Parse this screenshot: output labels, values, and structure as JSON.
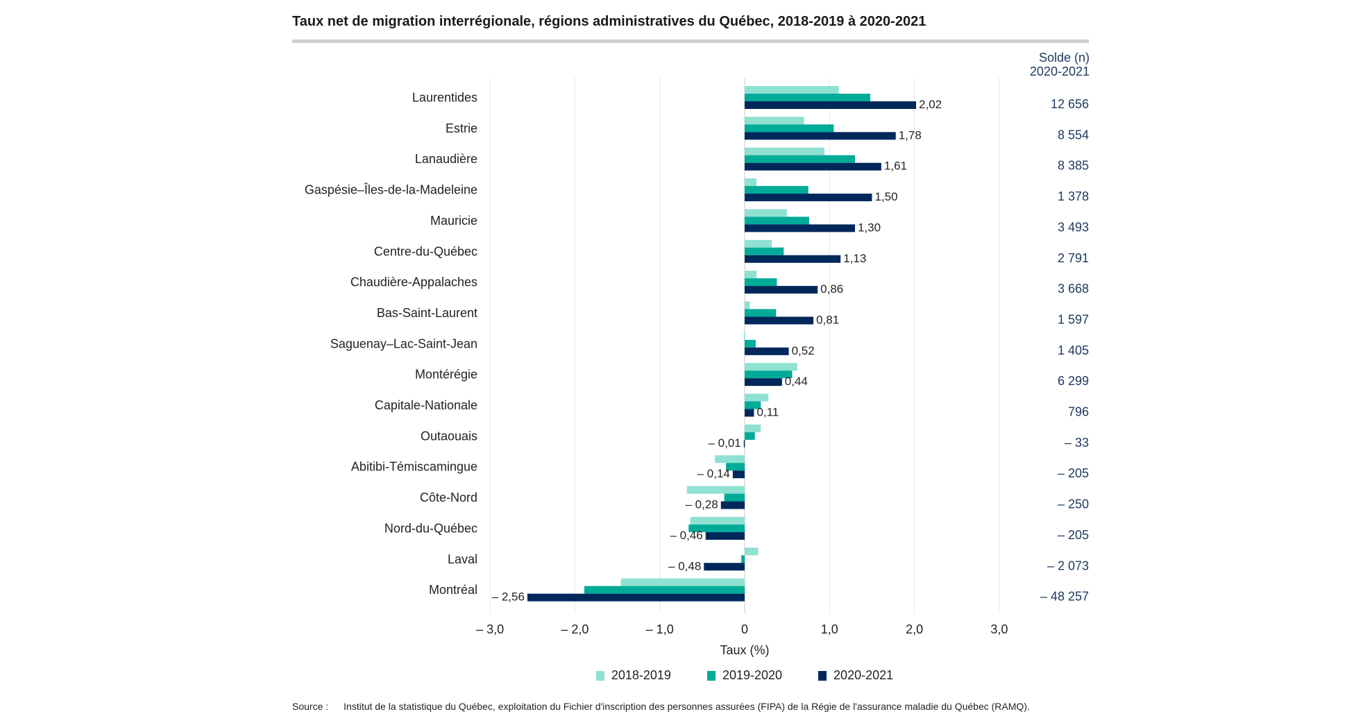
{
  "chart_data": {
    "type": "bar",
    "orientation": "horizontal",
    "title": "Taux net de migration interrégionale, régions administratives du Québec, 2018-2019 à 2020-2021",
    "xlabel": "Taux (%)",
    "xlim": [
      -3.0,
      3.0
    ],
    "xticks": [
      -3.0,
      -2.0,
      -1.0,
      0,
      1.0,
      2.0,
      3.0
    ],
    "xtick_labels": [
      "– 3,0",
      "– 2,0",
      "– 1,0",
      "0",
      "1,0",
      "2,0",
      "3,0"
    ],
    "grid": "vertical",
    "legend_position": "bottom",
    "categories": [
      "Laurentides",
      "Estrie",
      "Lanaudière",
      "Gaspésie–Îles-de-la-Madeleine",
      "Mauricie",
      "Centre-du-Québec",
      "Chaudière-Appalaches",
      "Bas-Saint-Laurent",
      "Saguenay–Lac-Saint-Jean",
      "Montérégie",
      "Capitale-Nationale",
      "Outaouais",
      "Abitibi-Témiscamingue",
      "Côte-Nord",
      "Nord-du-Québec",
      "Laval",
      "Montréal"
    ],
    "series": [
      {
        "name": "2018-2019",
        "color": "#8fe1d2",
        "values": [
          1.11,
          0.7,
          0.94,
          0.14,
          0.5,
          0.32,
          0.14,
          0.06,
          -0.01,
          0.62,
          0.28,
          0.19,
          -0.35,
          -0.68,
          -0.64,
          0.16,
          -1.46
        ]
      },
      {
        "name": "2019-2020",
        "color": "#00ab98",
        "values": [
          1.48,
          1.05,
          1.3,
          0.75,
          0.76,
          0.46,
          0.38,
          0.37,
          0.13,
          0.56,
          0.19,
          0.12,
          -0.22,
          -0.24,
          -0.66,
          -0.04,
          -1.89
        ]
      },
      {
        "name": "2020-2021",
        "color": "#00285a",
        "values": [
          2.02,
          1.78,
          1.61,
          1.5,
          1.3,
          1.13,
          0.86,
          0.81,
          0.52,
          0.44,
          0.11,
          -0.01,
          -0.14,
          -0.28,
          -0.46,
          -0.48,
          -2.56
        ],
        "labels": [
          "2,02",
          "1,78",
          "1,61",
          "1,50",
          "1,30",
          "1,13",
          "0,86",
          "0,81",
          "0,52",
          "0,44",
          "0,11",
          "– 0,01",
          "– 0,14",
          "– 0,28",
          "– 0,46",
          "– 0,48",
          "– 2,56"
        ]
      }
    ],
    "solde": {
      "header_line1": "Solde (n)",
      "header_line2": "2020-2021",
      "values": [
        "12 656",
        "8 554",
        "8 385",
        "1 378",
        "3 493",
        "2 791",
        "3 668",
        "1 597",
        "1 405",
        "6 299",
        "796",
        "– 33",
        "– 205",
        "– 250",
        "– 205",
        "– 2 073",
        "– 48 257"
      ]
    }
  },
  "source": {
    "label": "Source :",
    "text": "Institut de la statistique du Québec, exploitation du Fichier d'inscription des personnes assurées (FIPA) de la Régie de l'assurance maladie du Québec (RAMQ)."
  }
}
